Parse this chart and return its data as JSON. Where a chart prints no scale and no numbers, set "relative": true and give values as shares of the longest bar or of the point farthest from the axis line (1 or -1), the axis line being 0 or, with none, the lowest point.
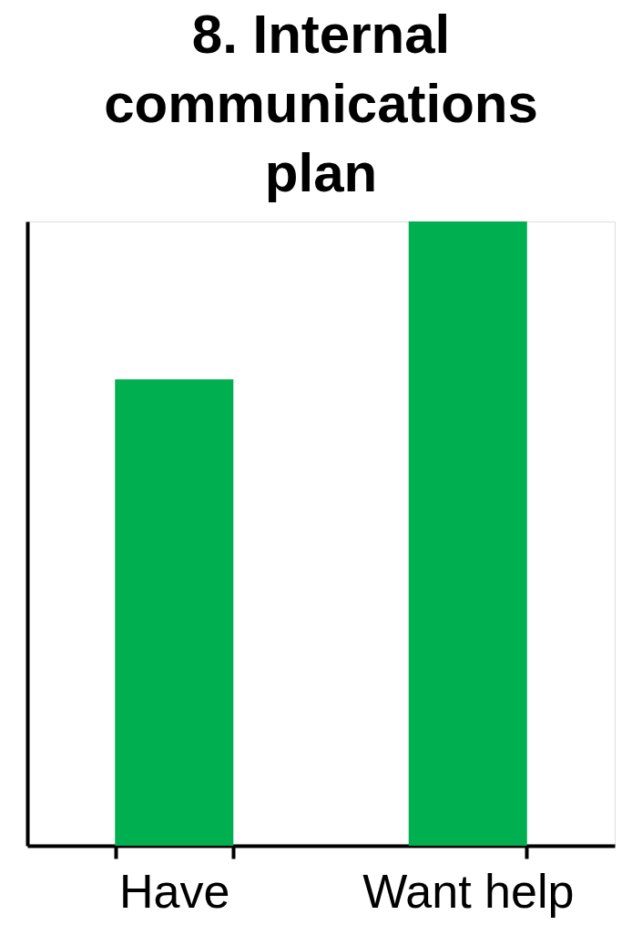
{
  "chart_data": {
    "type": "bar",
    "title": "8. Internal communications plan",
    "categories": [
      "Have",
      "Want help"
    ],
    "values": [
      0.747,
      1
    ],
    "color": "#00b050",
    "relative": true,
    "grid": false
  }
}
